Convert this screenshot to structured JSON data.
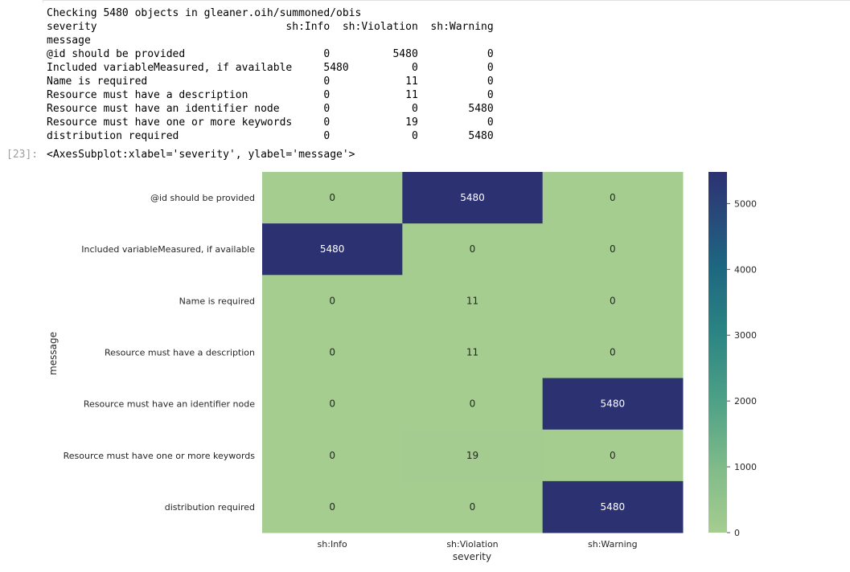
{
  "notebook": {
    "output_lines": [
      "Checking 5480 objects in gleaner.oih/summoned/obis",
      "severity                              sh:Info  sh:Violation  sh:Warning",
      "message",
      "@id should be provided                      0          5480           0",
      "Included variableMeasured, if available     5480          0           0",
      "Name is required                            0            11           0",
      "Resource must have a description            0            11           0",
      "Resource must have an identifier node       0             0        5480",
      "Resource must have one or more keywords     0            19           0",
      "distribution required                       0             0        5480"
    ],
    "execution_prompt": "[23]:",
    "result_repr": "<AxesSubplot:xlabel='severity', ylabel='message'>"
  },
  "chart_data": {
    "type": "heatmap",
    "xlabel": "severity",
    "ylabel": "message",
    "x_categories": [
      "sh:Info",
      "sh:Violation",
      "sh:Warning"
    ],
    "y_categories": [
      "@id should be provided",
      "Included variableMeasured, if available",
      "Name is required",
      "Resource must have a description",
      "Resource must have an identifier node",
      "Resource must have one or more keywords",
      "distribution required"
    ],
    "values": [
      [
        0,
        5480,
        0
      ],
      [
        5480,
        0,
        0
      ],
      [
        0,
        11,
        0
      ],
      [
        0,
        11,
        0
      ],
      [
        0,
        0,
        5480
      ],
      [
        0,
        19,
        0
      ],
      [
        0,
        0,
        5480
      ]
    ],
    "annotations": true,
    "colormap": "crest",
    "colors": {
      "low": "#a5cd90",
      "high": "#2c3172"
    },
    "colorbar": {
      "vmin": 0,
      "vmax": 5480,
      "ticks": [
        0,
        1000,
        2000,
        3000,
        4000,
        5000
      ]
    }
  }
}
